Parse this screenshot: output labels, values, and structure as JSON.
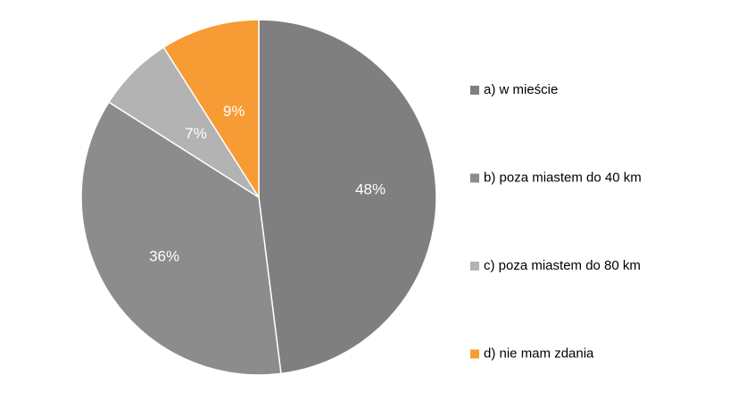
{
  "chart_data": {
    "type": "pie",
    "title": "",
    "legend_position": "right",
    "start_angle": "12 o'clock",
    "direction": "clockwise",
    "slices": [
      {
        "label": "a) w mieście",
        "value": 48,
        "value_label": "48%",
        "color": "#7f7f7f"
      },
      {
        "label": "b) poza miastem do 40 km",
        "value": 36,
        "value_label": "36%",
        "color": "#8c8c8c"
      },
      {
        "label": "c) poza miastem do 80 km",
        "value": 7,
        "value_label": "7%",
        "color": "#b3b3b3"
      },
      {
        "label": "d) nie mam zdania",
        "value": 9,
        "value_label": "9%",
        "color": "#f79b34"
      }
    ]
  }
}
